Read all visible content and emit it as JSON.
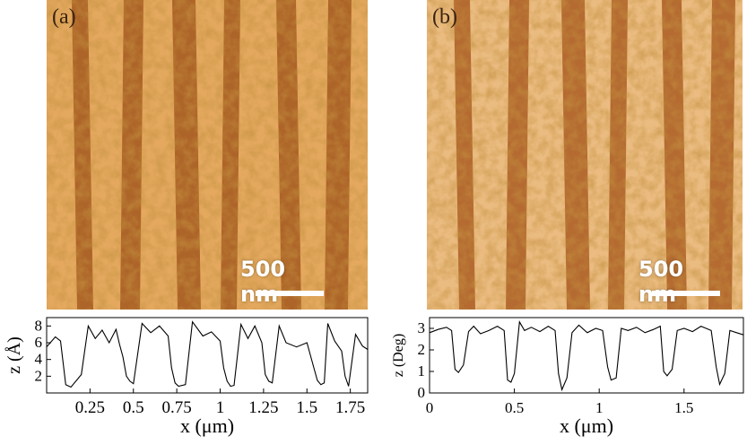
{
  "panels": [
    {
      "id": "a",
      "label": "(a)",
      "scale_bar_text": "500 nm",
      "colormap": {
        "light": "#f2c27a",
        "mid": "#d28a3e",
        "dark": "#9b4d16"
      },
      "stripe_count": 6
    },
    {
      "id": "b",
      "label": "(b)",
      "scale_bar_text": "500 nm",
      "colormap": {
        "light": "#f6d49c",
        "mid": "#dea060",
        "dark": "#a24f16"
      },
      "stripe_count": 6
    }
  ],
  "chart_data": [
    {
      "type": "line",
      "title": "",
      "xlabel": "x (μm)",
      "ylabel": "z (Å)",
      "xlim": [
        0,
        1.85
      ],
      "ylim": [
        0,
        9
      ],
      "xticks": [
        "0.25",
        "0.5",
        "0.75",
        "1",
        "1.25",
        "1.5",
        "1.75"
      ],
      "yticks": [
        "2",
        "4",
        "6",
        "8"
      ],
      "x": [
        0.0,
        0.05,
        0.08,
        0.11,
        0.14,
        0.2,
        0.24,
        0.28,
        0.32,
        0.36,
        0.4,
        0.42,
        0.44,
        0.46,
        0.48,
        0.5,
        0.55,
        0.6,
        0.65,
        0.7,
        0.72,
        0.74,
        0.76,
        0.8,
        0.84,
        0.9,
        0.95,
        1.0,
        1.02,
        1.04,
        1.06,
        1.08,
        1.12,
        1.16,
        1.2,
        1.24,
        1.26,
        1.28,
        1.3,
        1.34,
        1.38,
        1.44,
        1.5,
        1.54,
        1.56,
        1.58,
        1.6,
        1.62,
        1.66,
        1.7,
        1.72,
        1.74,
        1.78,
        1.82,
        1.85
      ],
      "y": [
        5.5,
        6.7,
        6.2,
        1.0,
        0.7,
        2.2,
        8.0,
        6.5,
        7.5,
        6.0,
        7.6,
        5.8,
        4.3,
        2.0,
        1.4,
        1.1,
        8.3,
        7.2,
        8.0,
        6.8,
        3.0,
        1.2,
        0.8,
        1.0,
        8.5,
        6.8,
        7.3,
        6.2,
        3.0,
        1.4,
        0.8,
        0.9,
        8.2,
        6.5,
        8.0,
        6.0,
        2.2,
        1.4,
        1.2,
        8.0,
        6.0,
        5.5,
        6.0,
        3.0,
        1.5,
        1.0,
        1.2,
        8.3,
        6.2,
        5.0,
        2.0,
        0.8,
        7.0,
        5.6,
        5.2
      ]
    },
    {
      "type": "line",
      "title": "",
      "xlabel": "x (μm)",
      "ylabel": "z (Deg)",
      "xlim": [
        0,
        1.85
      ],
      "ylim": [
        0,
        3.5
      ],
      "xticks": [
        "0",
        "0.5",
        "1",
        "1.5"
      ],
      "yticks": [
        "0",
        "1",
        "2",
        "3"
      ],
      "x": [
        0.0,
        0.05,
        0.1,
        0.13,
        0.15,
        0.17,
        0.2,
        0.23,
        0.26,
        0.3,
        0.35,
        0.4,
        0.44,
        0.46,
        0.48,
        0.5,
        0.53,
        0.56,
        0.6,
        0.65,
        0.7,
        0.74,
        0.76,
        0.78,
        0.81,
        0.84,
        0.88,
        0.93,
        0.98,
        1.02,
        1.05,
        1.07,
        1.1,
        1.13,
        1.17,
        1.22,
        1.27,
        1.32,
        1.36,
        1.38,
        1.4,
        1.43,
        1.46,
        1.5,
        1.55,
        1.6,
        1.66,
        1.69,
        1.71,
        1.74,
        1.77,
        1.81,
        1.85
      ],
      "y": [
        2.8,
        2.95,
        3.05,
        2.9,
        1.1,
        0.95,
        1.3,
        2.85,
        3.1,
        2.75,
        2.9,
        3.1,
        2.9,
        0.6,
        0.5,
        0.9,
        3.3,
        2.9,
        3.05,
        2.85,
        3.1,
        2.9,
        0.9,
        0.15,
        0.7,
        2.8,
        3.15,
        2.8,
        3.0,
        2.9,
        1.2,
        0.6,
        0.7,
        3.0,
        2.9,
        3.05,
        2.8,
        2.95,
        3.1,
        1.0,
        0.8,
        1.1,
        2.9,
        3.0,
        2.85,
        3.1,
        2.9,
        1.2,
        0.4,
        0.9,
        2.9,
        2.8,
        2.7
      ]
    }
  ]
}
